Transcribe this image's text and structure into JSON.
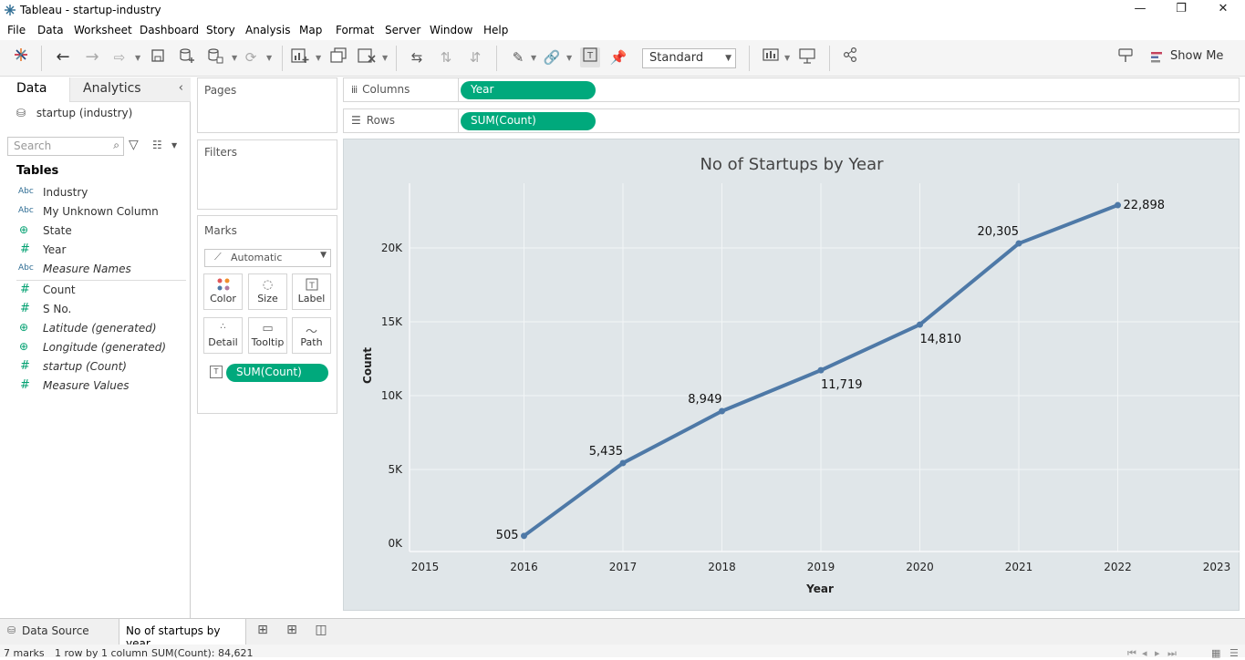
{
  "window": {
    "title": "Tableau - startup-industry",
    "controls": {
      "minimize": "—",
      "restore": "❐",
      "close": "✕"
    }
  },
  "menu": [
    "File",
    "Data",
    "Worksheet",
    "Dashboard",
    "Story",
    "Analysis",
    "Map",
    "Format",
    "Server",
    "Window",
    "Help"
  ],
  "toolbar": {
    "fit_select": "Standard",
    "show_me": "Show Me"
  },
  "data_pane": {
    "tabs": {
      "data": "Data",
      "analytics": "Analytics"
    },
    "data_source": "startup (industry)",
    "search_placeholder": "Search",
    "tables_title": "Tables",
    "dimensions": [
      {
        "icon": "Abc",
        "name": "Industry",
        "italic": false
      },
      {
        "icon": "Abc",
        "name": "My Unknown Column",
        "italic": false
      },
      {
        "icon": "globe",
        "name": "State",
        "italic": false
      },
      {
        "icon": "#",
        "name": "Year",
        "italic": false
      },
      {
        "icon": "Abc",
        "name": "Measure Names",
        "italic": true
      }
    ],
    "measures": [
      {
        "icon": "#",
        "name": "Count",
        "italic": false
      },
      {
        "icon": "#",
        "name": "S No.",
        "italic": false
      },
      {
        "icon": "globe",
        "name": "Latitude (generated)",
        "italic": true
      },
      {
        "icon": "globe",
        "name": "Longitude (generated)",
        "italic": true
      },
      {
        "icon": "#",
        "name": "startup (Count)",
        "italic": true
      },
      {
        "icon": "#",
        "name": "Measure Values",
        "italic": true
      }
    ]
  },
  "cards": {
    "pages": "Pages",
    "filters": "Filters",
    "marks": {
      "title": "Marks",
      "mark_type": "Automatic",
      "buttons": [
        "Color",
        "Size",
        "Label",
        "Detail",
        "Tooltip",
        "Path"
      ],
      "pill": "SUM(Count)"
    }
  },
  "shelves": {
    "columns": {
      "label": "Columns",
      "pill": "Year"
    },
    "rows": {
      "label": "Rows",
      "pill": "SUM(Count)"
    }
  },
  "chart_data": {
    "type": "line",
    "title": "No of Startups by Year",
    "xlabel": "Year",
    "ylabel": "Count",
    "x": [
      2016,
      2017,
      2018,
      2019,
      2020,
      2021,
      2022
    ],
    "series": [
      {
        "values": [
          505,
          5435,
          8949,
          11719,
          14810,
          20305,
          22898
        ]
      }
    ],
    "data_labels": [
      "505",
      "5,435",
      "8,949",
      "11,719",
      "14,810",
      "20,305",
      "22,898"
    ],
    "x_ticks": [
      "2015",
      "2016",
      "2017",
      "2018",
      "2019",
      "2020",
      "2021",
      "2022",
      "2023"
    ],
    "y_ticks": [
      "0K",
      "5K",
      "10K",
      "15K",
      "20K"
    ],
    "xlim": [
      2015,
      2023
    ],
    "ylim": [
      0,
      24000
    ],
    "line_color": "#4e79a7",
    "background": "#e0e6e9",
    "grid": true
  },
  "sheet_bar": {
    "data_source_tab": "Data Source",
    "active_sheet": "No of startups by year"
  },
  "status": {
    "marks": "7 marks",
    "dims": "1 row by 1 column",
    "sum": "SUM(Count): 84,621"
  }
}
